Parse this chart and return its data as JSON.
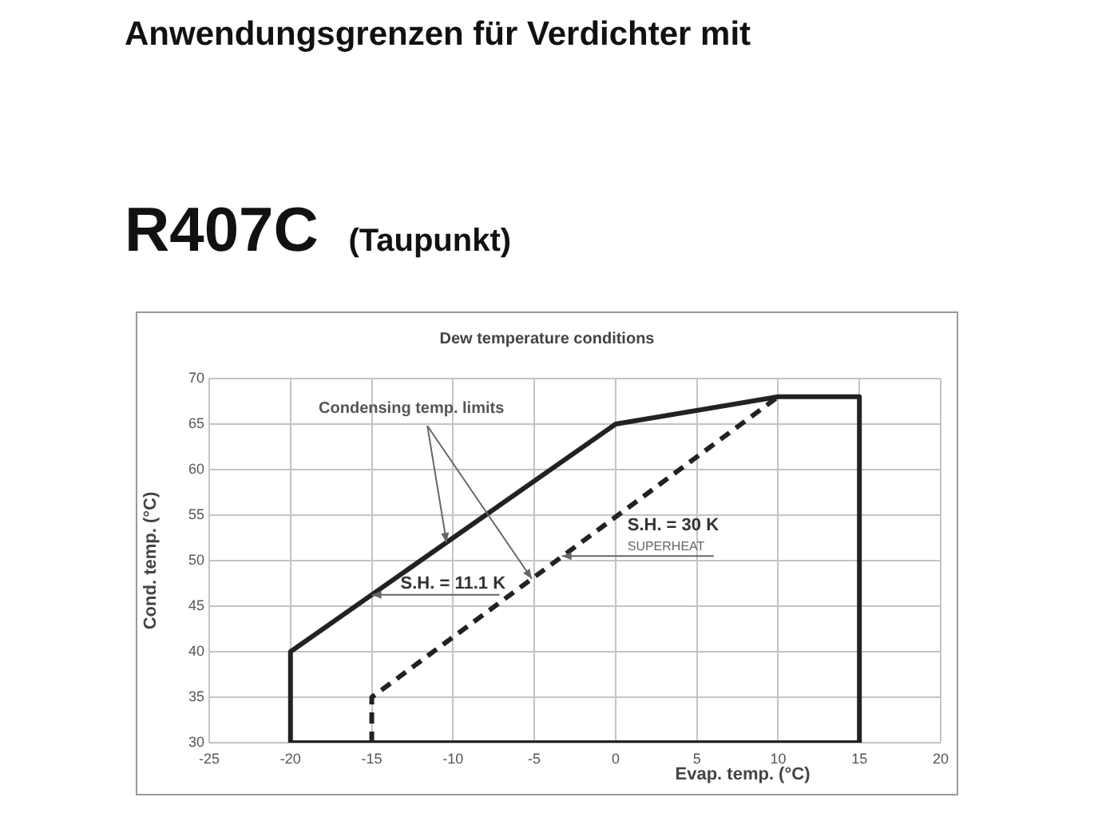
{
  "chart_data": {
    "type": "line",
    "title": "Anwendungsgrenzen für Verdichter mit",
    "subtitle": "R407C (Taupunkt)",
    "xlabel": "Evap. temp. (°C)",
    "ylabel": "Cond. temp. (°C)",
    "annotations": [
      "Dew temperature conditions",
      {
        "text": "Condensing temp. limits",
        "x": -10.4,
        "y": 52
      },
      {
        "text": "S.H. = 11.1 K",
        "x": -15,
        "y": 46.25
      },
      {
        "text": "S.H. = 30 K",
        "x": -3.3,
        "y": 50.5
      },
      "SUPERHEAT"
    ],
    "series": [
      {
        "color": "#222222",
        "x": [
          -20,
          -20,
          0,
          10,
          15,
          15
        ],
        "values": [
          30,
          40,
          65,
          68,
          68,
          30
        ]
      },
      {
        "color": "#222222",
        "x": [
          -15,
          -15,
          10
        ],
        "values": [
          30,
          35,
          68
        ],
        "line_style": "dashed"
      },
      {
        "color": "#222222",
        "x": [
          -20,
          15
        ],
        "values": [
          30,
          30
        ]
      }
    ],
    "xlim": [
      -25,
      20
    ],
    "xticks": [
      -25,
      -20,
      -15,
      -10,
      -5,
      0,
      5,
      10,
      15,
      20
    ],
    "ylim": [
      30,
      70
    ],
    "yticks": [
      30,
      35,
      40,
      45,
      50,
      55,
      60,
      65,
      70
    ],
    "grid": true,
    "marker": "none",
    "line_style": "solid"
  }
}
